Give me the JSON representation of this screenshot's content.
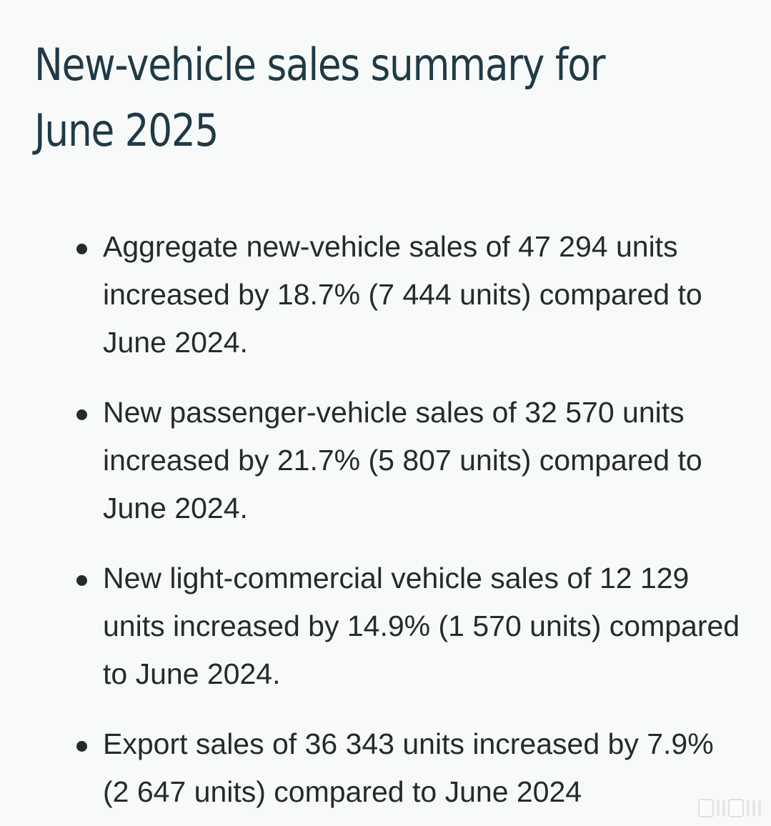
{
  "heading": {
    "line1": "New-vehicle sales summary for",
    "line2": "June 2025"
  },
  "bullets": [
    "Aggregate new-vehicle sales of 47 294 units increased by 18.7% (7 444 units) compared to June 2024.",
    "New passenger-vehicle sales of 32 570 units increased by 21.7% (5 807 units) compared to June 2024.",
    "New light-commercial vehicle sales of 12 129 units increased by 14.9% (1 570 units) compared to June 2024.",
    "Export sales of 36 343 units increased by 7.9% (2 647 units) compared to June 2024"
  ],
  "watermark_icon": "platform-watermark-icon"
}
